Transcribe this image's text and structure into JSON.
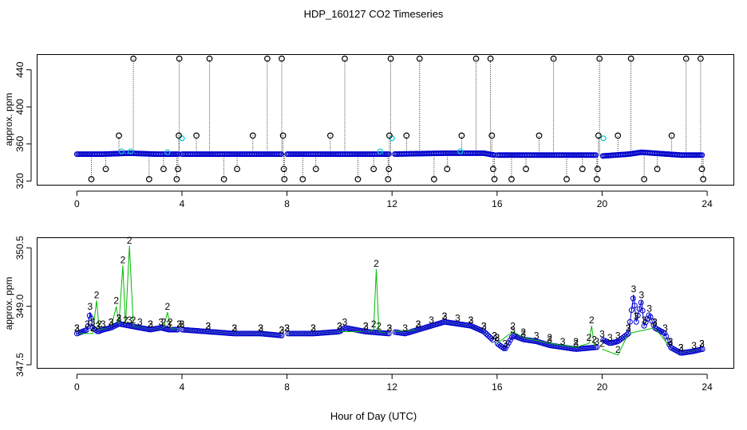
{
  "title": "HDP_160127  CO2 Timeseries",
  "xlabel": "Hour of Day (UTC)",
  "colors": {
    "outlier": "#000000",
    "cyan": "#00c8d2",
    "blue": "#0000cc",
    "green": "#00bb00",
    "axis": "#000000"
  },
  "chart_data": [
    {
      "type": "scatter",
      "panel": "top",
      "ylabel": "approx. ppm",
      "xlim": [
        -1.5,
        25
      ],
      "ylim": [
        316,
        456
      ],
      "x_ticks": [
        0,
        4,
        8,
        12,
        16,
        20,
        24
      ],
      "y_ticks": [
        320,
        360,
        400,
        440
      ],
      "baseline": [
        [
          0.0,
          349
        ],
        [
          1.0,
          349
        ],
        [
          2.0,
          350
        ],
        [
          3.0,
          349
        ],
        [
          4.0,
          349
        ],
        [
          6.0,
          349
        ],
        [
          7.8,
          349
        ],
        [
          8.0,
          349
        ],
        [
          10.0,
          349
        ],
        [
          12.0,
          349
        ],
        [
          14.0,
          350
        ],
        [
          15.5,
          350
        ],
        [
          15.9,
          348
        ],
        [
          18.0,
          348
        ],
        [
          19.8,
          348
        ],
        [
          20.0,
          347
        ],
        [
          21.0,
          349
        ],
        [
          21.5,
          351
        ],
        [
          22.0,
          350
        ],
        [
          23.0,
          348
        ],
        [
          23.8,
          348
        ]
      ],
      "gaps": [
        [
          3.9,
          4.0
        ],
        [
          7.8,
          8.0
        ],
        [
          11.9,
          12.1
        ],
        [
          15.9,
          16.0
        ],
        [
          19.8,
          20.0
        ]
      ],
      "outliers": [
        [
          0.55,
          322
        ],
        [
          1.1,
          333
        ],
        [
          1.6,
          369
        ],
        [
          2.15,
          452
        ],
        [
          2.75,
          322
        ],
        [
          3.3,
          333
        ],
        [
          3.8,
          322
        ],
        [
          3.85,
          333
        ],
        [
          3.88,
          369
        ],
        [
          3.9,
          452
        ],
        [
          4.55,
          369
        ],
        [
          5.05,
          452
        ],
        [
          5.6,
          322
        ],
        [
          6.1,
          333
        ],
        [
          6.7,
          369
        ],
        [
          7.25,
          452
        ],
        [
          7.8,
          452
        ],
        [
          7.85,
          369
        ],
        [
          7.88,
          333
        ],
        [
          7.9,
          322
        ],
        [
          8.6,
          322
        ],
        [
          9.1,
          333
        ],
        [
          9.65,
          369
        ],
        [
          10.2,
          452
        ],
        [
          10.7,
          322
        ],
        [
          11.3,
          333
        ],
        [
          11.85,
          322
        ],
        [
          11.88,
          333
        ],
        [
          11.9,
          369
        ],
        [
          11.95,
          452
        ],
        [
          12.55,
          369
        ],
        [
          13.05,
          452
        ],
        [
          13.6,
          322
        ],
        [
          14.1,
          333
        ],
        [
          14.65,
          369
        ],
        [
          15.2,
          452
        ],
        [
          15.75,
          452
        ],
        [
          15.8,
          369
        ],
        [
          15.85,
          333
        ],
        [
          15.9,
          322
        ],
        [
          16.55,
          322
        ],
        [
          17.1,
          333
        ],
        [
          17.6,
          369
        ],
        [
          18.15,
          452
        ],
        [
          18.65,
          322
        ],
        [
          19.25,
          333
        ],
        [
          19.8,
          322
        ],
        [
          19.83,
          333
        ],
        [
          19.86,
          369
        ],
        [
          19.9,
          452
        ],
        [
          20.6,
          369
        ],
        [
          21.1,
          452
        ],
        [
          21.6,
          322
        ],
        [
          22.1,
          333
        ],
        [
          22.65,
          369
        ],
        [
          23.2,
          452
        ],
        [
          23.75,
          452
        ],
        [
          23.8,
          333
        ],
        [
          23.85,
          322
        ]
      ],
      "cyan_points": [
        [
          1.7,
          352
        ],
        [
          2.05,
          352
        ],
        [
          3.45,
          351
        ],
        [
          4.0,
          366
        ],
        [
          11.55,
          352
        ],
        [
          12.0,
          366
        ],
        [
          14.6,
          352
        ],
        [
          20.05,
          366
        ]
      ]
    },
    {
      "type": "line",
      "panel": "bottom",
      "ylabel": "approx. ppm",
      "xlim": [
        -1.5,
        25
      ],
      "ylim": [
        347.42,
        350.75
      ],
      "x_ticks": [
        0,
        4,
        8,
        12,
        16,
        20,
        24
      ],
      "y_ticks": [
        347.5,
        349.0,
        350.5
      ],
      "series": [
        {
          "marker": "3",
          "color_key": "blue",
          "points": [
            [
              0.0,
              348.3
            ],
            [
              0.4,
              348.4
            ],
            [
              0.5,
              348.85
            ],
            [
              0.6,
              348.45
            ],
            [
              0.8,
              348.35
            ],
            [
              1.0,
              348.4
            ],
            [
              1.3,
              348.45
            ],
            [
              1.6,
              348.55
            ],
            [
              2.0,
              348.5
            ],
            [
              2.4,
              348.45
            ],
            [
              2.8,
              348.4
            ],
            [
              3.2,
              348.45
            ],
            [
              3.5,
              348.4
            ],
            [
              3.9,
              348.4
            ],
            [
              4.0,
              348.4
            ],
            [
              5.0,
              348.35
            ],
            [
              6.0,
              348.3
            ],
            [
              7.0,
              348.3
            ],
            [
              7.8,
              348.25
            ],
            [
              8.0,
              348.3
            ],
            [
              9.0,
              348.3
            ],
            [
              10.0,
              348.35
            ],
            [
              10.2,
              348.45
            ],
            [
              11.0,
              348.35
            ],
            [
              11.9,
              348.3
            ],
            [
              12.0,
              348.35
            ],
            [
              12.5,
              348.3
            ],
            [
              13.0,
              348.4
            ],
            [
              13.5,
              348.5
            ],
            [
              14.0,
              348.6
            ],
            [
              14.5,
              348.55
            ],
            [
              15.0,
              348.5
            ],
            [
              15.5,
              348.35
            ],
            [
              15.9,
              348.1
            ],
            [
              16.0,
              348.05
            ],
            [
              16.3,
              347.9
            ],
            [
              16.6,
              348.25
            ],
            [
              17.0,
              348.15
            ],
            [
              17.5,
              348.1
            ],
            [
              18.0,
              348.0
            ],
            [
              18.5,
              347.95
            ],
            [
              19.0,
              347.9
            ],
            [
              19.8,
              347.95
            ],
            [
              20.0,
              348.15
            ],
            [
              20.3,
              348.05
            ],
            [
              20.6,
              348.1
            ],
            [
              21.0,
              348.3
            ],
            [
              21.2,
              349.3
            ],
            [
              21.3,
              348.6
            ],
            [
              21.5,
              349.15
            ],
            [
              21.6,
              348.5
            ],
            [
              21.8,
              348.8
            ],
            [
              22.0,
              348.45
            ],
            [
              22.4,
              348.3
            ],
            [
              22.6,
              347.95
            ],
            [
              23.0,
              347.8
            ],
            [
              23.5,
              347.85
            ],
            [
              23.8,
              347.9
            ]
          ]
        },
        {
          "marker": "2",
          "color_key": "green",
          "points": [
            [
              0.0,
              348.3
            ],
            [
              0.6,
              348.3
            ],
            [
              0.75,
              349.15
            ],
            [
              0.85,
              348.4
            ],
            [
              1.3,
              348.45
            ],
            [
              1.5,
              349.0
            ],
            [
              1.6,
              348.55
            ],
            [
              1.75,
              350.05
            ],
            [
              1.85,
              348.5
            ],
            [
              2.0,
              350.55
            ],
            [
              2.15,
              348.5
            ],
            [
              2.8,
              348.4
            ],
            [
              3.3,
              348.45
            ],
            [
              3.45,
              348.85
            ],
            [
              3.55,
              348.45
            ],
            [
              3.9,
              348.4
            ],
            [
              4.0,
              348.4
            ],
            [
              5.0,
              348.35
            ],
            [
              6.0,
              348.3
            ],
            [
              7.0,
              348.3
            ],
            [
              7.8,
              348.25
            ],
            [
              8.0,
              348.3
            ],
            [
              9.0,
              348.3
            ],
            [
              10.0,
              348.35
            ],
            [
              11.0,
              348.35
            ],
            [
              11.3,
              348.4
            ],
            [
              11.4,
              349.95
            ],
            [
              11.5,
              348.35
            ],
            [
              11.9,
              348.3
            ],
            [
              12.0,
              348.35
            ],
            [
              13.0,
              348.4
            ],
            [
              14.0,
              348.6
            ],
            [
              15.0,
              348.5
            ],
            [
              15.5,
              348.35
            ],
            [
              15.9,
              348.1
            ],
            [
              16.0,
              348.05
            ],
            [
              16.6,
              348.35
            ],
            [
              17.0,
              348.2
            ],
            [
              18.0,
              348.05
            ],
            [
              19.0,
              347.95
            ],
            [
              19.5,
              348.05
            ],
            [
              19.6,
              348.5
            ],
            [
              19.7,
              348.0
            ],
            [
              20.0,
              347.9
            ],
            [
              20.6,
              347.75
            ],
            [
              21.0,
              348.3
            ],
            [
              22.0,
              348.45
            ],
            [
              22.6,
              347.95
            ],
            [
              23.0,
              347.8
            ],
            [
              23.8,
              347.9
            ]
          ]
        }
      ]
    }
  ]
}
